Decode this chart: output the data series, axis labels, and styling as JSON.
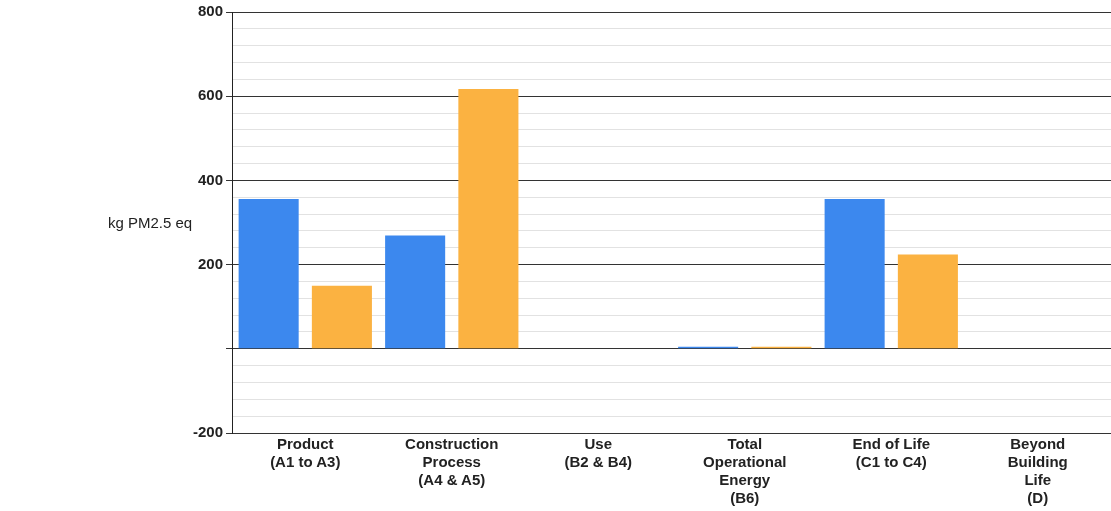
{
  "chart_data": {
    "type": "bar",
    "ylabel": "kg PM2.5 eq",
    "categories": [
      "Product\n(A1 to A3)",
      "Construction\nProcess\n(A4 & A5)",
      "Use\n(B2 & B4)",
      "Total\nOperational\nEnergy\n(B6)",
      "End of Life\n(C1 to C4)",
      "Beyond\nBuilding\nLife\n(D)"
    ],
    "series": [
      {
        "color": "#3c88ee",
        "values": [
          356,
          269,
          0,
          5,
          356,
          0
        ]
      },
      {
        "color": "#fbb241",
        "values": [
          150,
          617,
          0,
          5,
          224,
          0
        ]
      }
    ],
    "ylim": [
      -200,
      800
    ],
    "yticks": [
      -200,
      {
        "value": -160,
        "label": null
      },
      {
        "value": -120,
        "label": null
      },
      {
        "value": -80,
        "label": null
      },
      {
        "value": -40,
        "label": null
      },
      {
        "value": 0,
        "label": null
      },
      {
        "value": 40,
        "label": null
      },
      {
        "value": 80,
        "label": null
      },
      {
        "value": 120,
        "label": null
      },
      {
        "value": 160,
        "label": null
      },
      200,
      {
        "value": 240,
        "label": null
      },
      {
        "value": 280,
        "label": null
      },
      {
        "value": 320,
        "label": null
      },
      {
        "value": 360,
        "label": null
      },
      400,
      {
        "value": 440,
        "label": null
      },
      {
        "value": 480,
        "label": null
      },
      {
        "value": 520,
        "label": null
      },
      {
        "value": 560,
        "label": null
      },
      600,
      {
        "value": 640,
        "label": null
      },
      {
        "value": 680,
        "label": null
      },
      {
        "value": 720,
        "label": null
      },
      {
        "value": 760,
        "label": null
      },
      800
    ],
    "grid": "y",
    "legend": false
  }
}
